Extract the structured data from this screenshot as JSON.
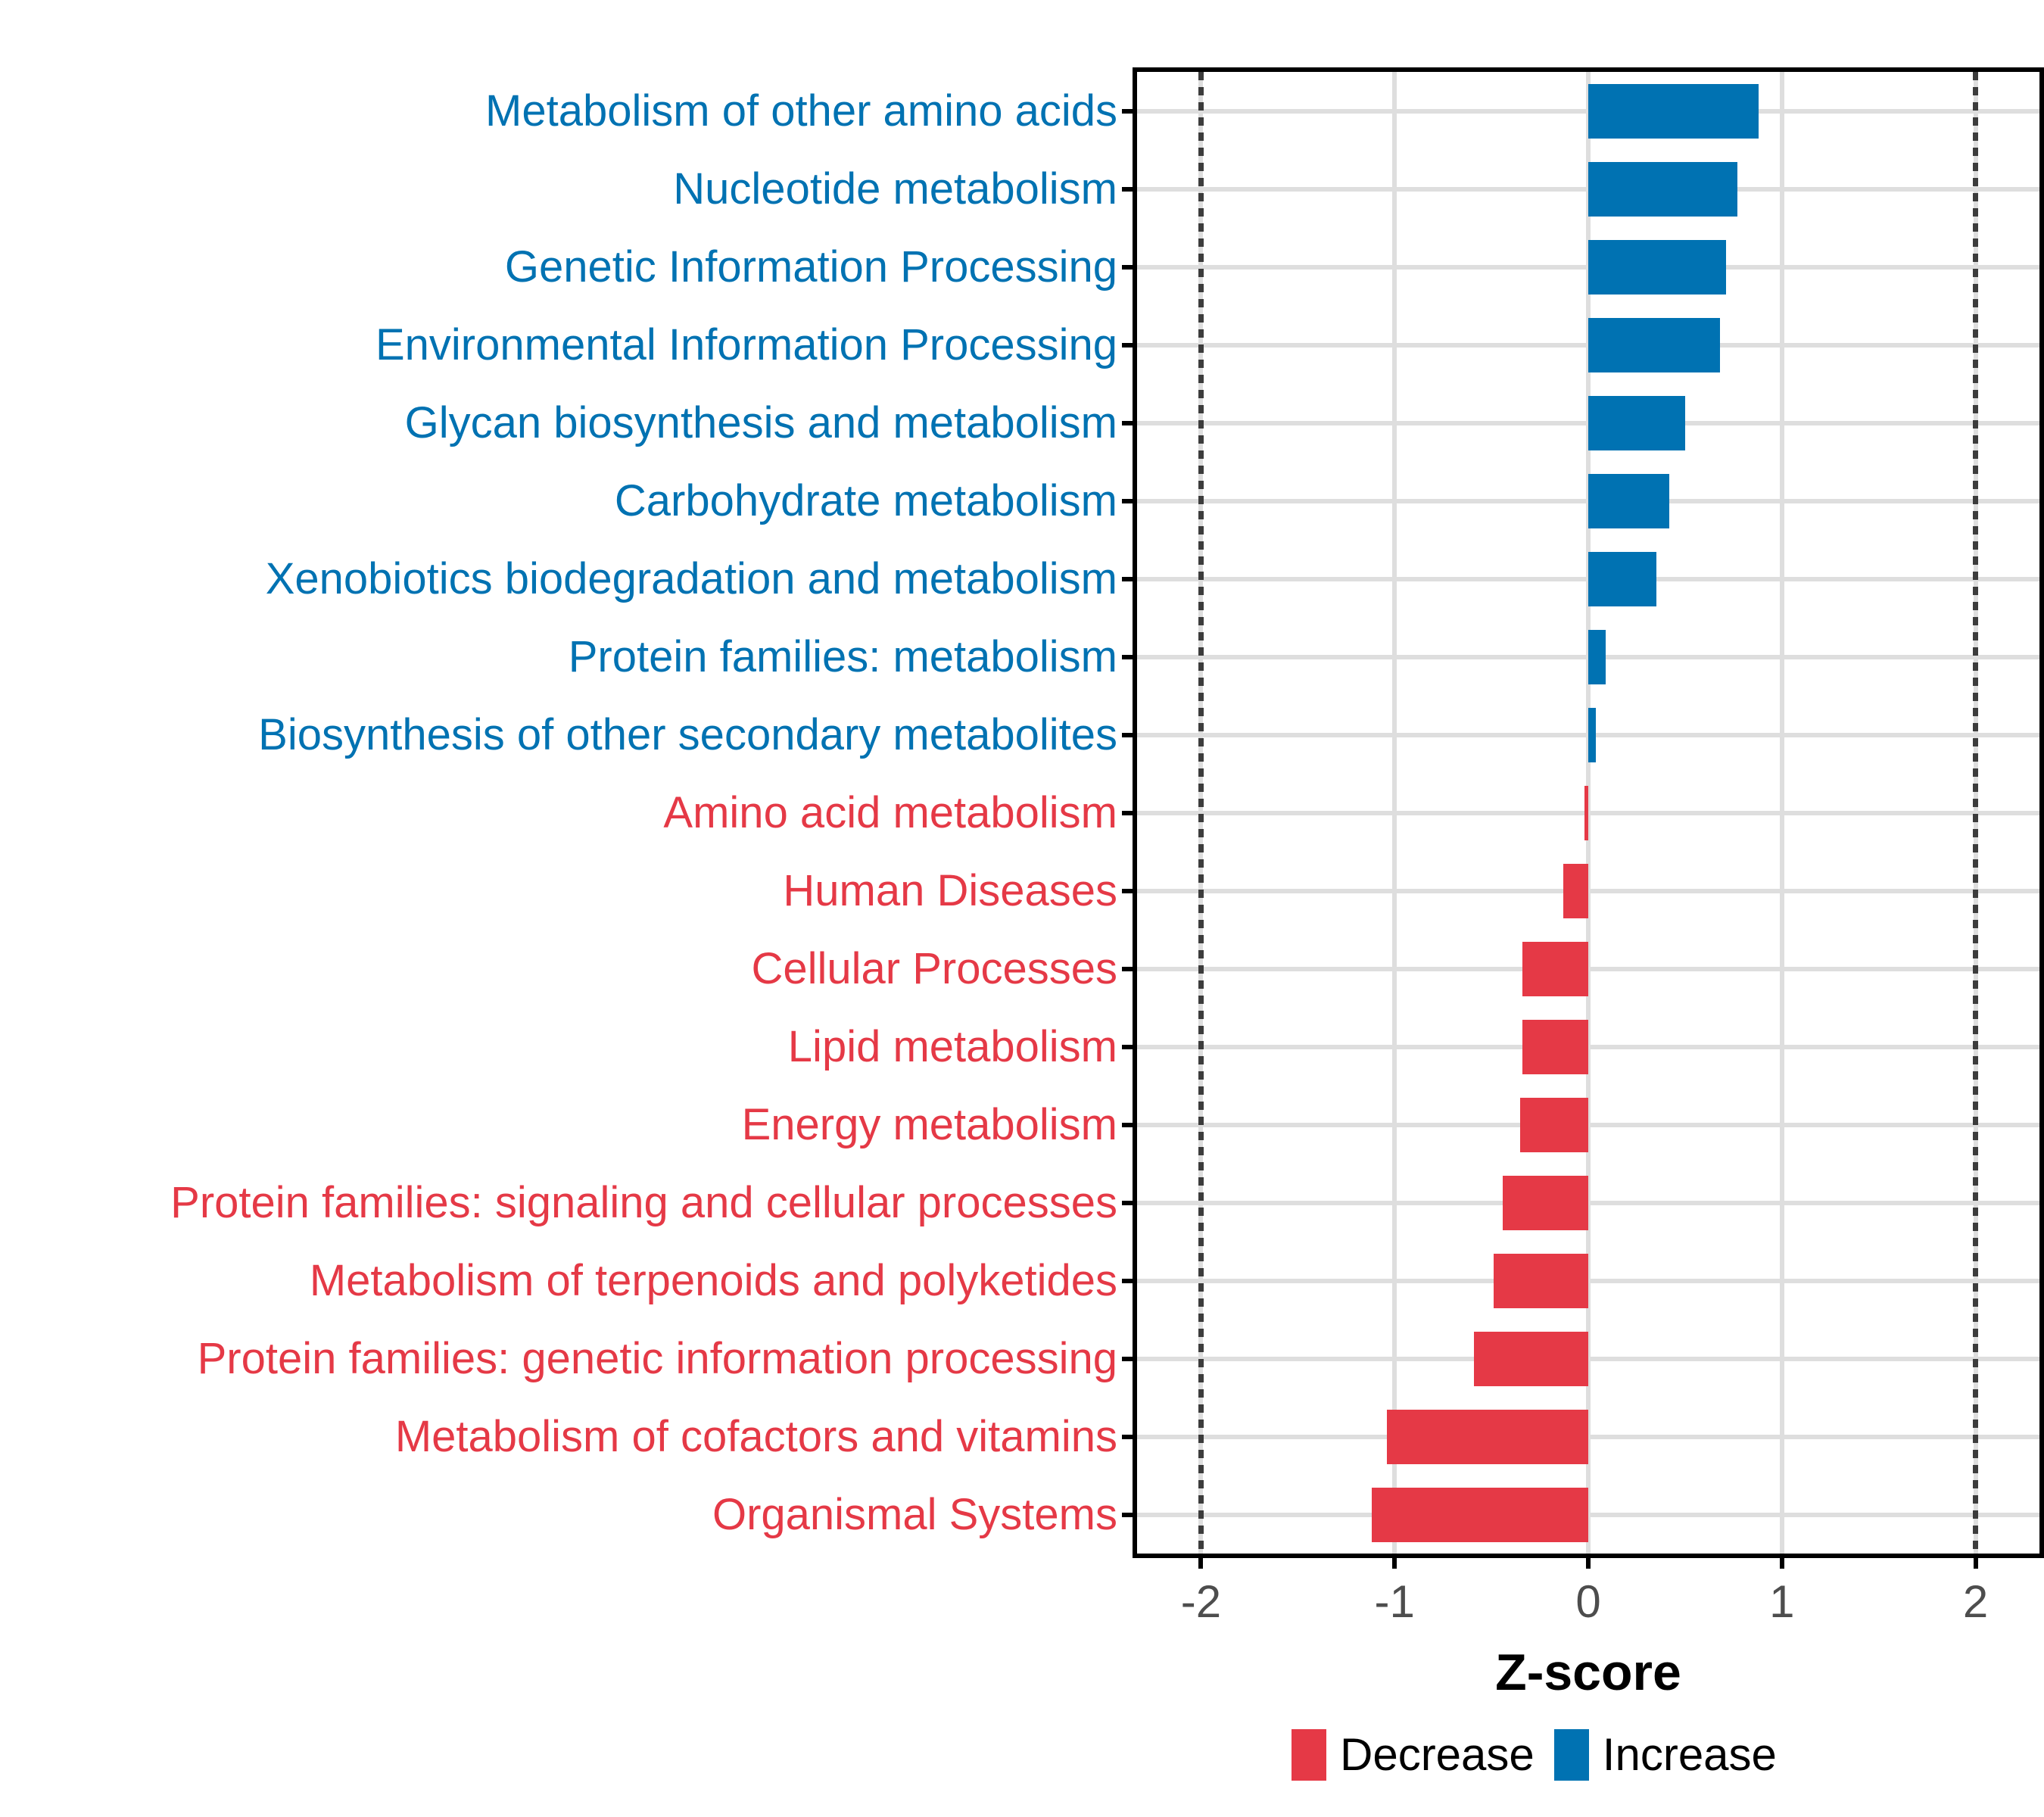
{
  "chart_data": {
    "type": "bar",
    "orientation": "horizontal",
    "title": "",
    "xlabel": "Z-score",
    "ylabel": "",
    "xlim": [
      -2.33,
      2.33
    ],
    "x_ticks": [
      {
        "v": -2,
        "label": "-2"
      },
      {
        "v": -1,
        "label": "-1"
      },
      {
        "v": 0,
        "label": "0"
      },
      {
        "v": 1,
        "label": "1"
      },
      {
        "v": 2,
        "label": "2"
      }
    ],
    "reference_lines": [
      -2,
      2
    ],
    "grid": "major-only",
    "legend_position": "bottom",
    "colors": {
      "increase": "#0072B2",
      "decrease": "#E53946",
      "gridline": "#DEDEDE",
      "reference_line": "#3C3C3C",
      "axis_text": "#4D4D4D",
      "background": "#FFFFFF"
    },
    "legend": [
      {
        "label": "Decrease",
        "color": "#E53946"
      },
      {
        "label": "Increase",
        "color": "#0072B2"
      }
    ],
    "categories": [
      {
        "label": "Metabolism of other amino acids",
        "value": 0.88,
        "direction": "increase"
      },
      {
        "label": "Nucleotide metabolism",
        "value": 0.77,
        "direction": "increase"
      },
      {
        "label": "Genetic Information Processing",
        "value": 0.71,
        "direction": "increase"
      },
      {
        "label": "Environmental Information Processing",
        "value": 0.68,
        "direction": "increase"
      },
      {
        "label": "Glycan biosynthesis and metabolism",
        "value": 0.5,
        "direction": "increase"
      },
      {
        "label": "Carbohydrate metabolism",
        "value": 0.42,
        "direction": "increase"
      },
      {
        "label": "Xenobiotics biodegradation and metabolism",
        "value": 0.35,
        "direction": "increase"
      },
      {
        "label": "Protein families: metabolism",
        "value": 0.09,
        "direction": "increase"
      },
      {
        "label": "Biosynthesis of other secondary metabolites",
        "value": 0.04,
        "direction": "increase"
      },
      {
        "label": "Amino acid metabolism",
        "value": -0.02,
        "direction": "decrease"
      },
      {
        "label": "Human Diseases",
        "value": -0.13,
        "direction": "decrease"
      },
      {
        "label": "Cellular Processes",
        "value": -0.34,
        "direction": "decrease"
      },
      {
        "label": "Lipid metabolism",
        "value": -0.34,
        "direction": "decrease"
      },
      {
        "label": "Energy metabolism",
        "value": -0.35,
        "direction": "decrease"
      },
      {
        "label": "Protein families: signaling and cellular processes",
        "value": -0.44,
        "direction": "decrease"
      },
      {
        "label": "Metabolism of terpenoids and polyketides",
        "value": -0.49,
        "direction": "decrease"
      },
      {
        "label": "Protein families: genetic information processing",
        "value": -0.59,
        "direction": "decrease"
      },
      {
        "label": "Metabolism of cofactors and vitamins",
        "value": -1.04,
        "direction": "decrease"
      },
      {
        "label": "Organismal Systems",
        "value": -1.12,
        "direction": "decrease"
      }
    ]
  }
}
